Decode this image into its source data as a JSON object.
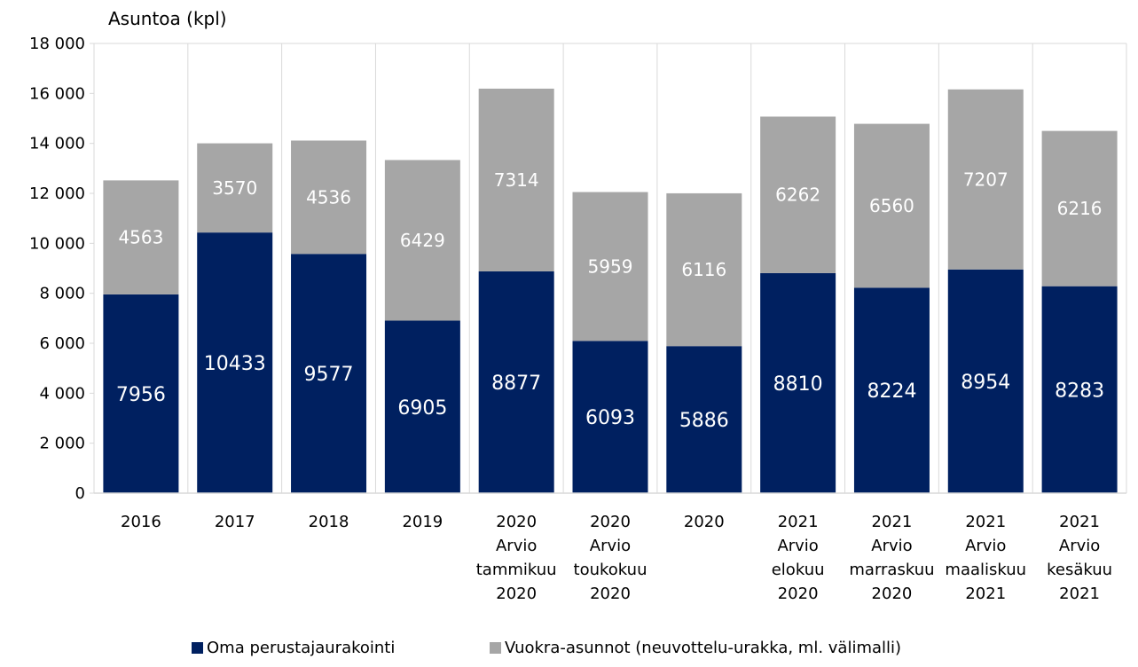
{
  "chart_data": {
    "type": "bar",
    "stacked": true,
    "ylabel": "Asuntoa (kpl)",
    "ylim": [
      0,
      18000
    ],
    "yticks": [
      0,
      2000,
      4000,
      6000,
      8000,
      10000,
      12000,
      14000,
      16000,
      18000
    ],
    "ytick_labels": [
      "0",
      "2 000",
      "4 000",
      "6 000",
      "8 000",
      "10 000",
      "12 000",
      "14 000",
      "16 000",
      "18 000"
    ],
    "grid": "vertical",
    "legend_position": "bottom",
    "categories": [
      [
        "2016"
      ],
      [
        "2017"
      ],
      [
        "2018"
      ],
      [
        "2019"
      ],
      [
        "2020",
        "Arvio",
        "tammikuu",
        "2020"
      ],
      [
        "2020",
        "Arvio",
        "toukokuu",
        "2020"
      ],
      [
        "2020"
      ],
      [
        "2021",
        "Arvio",
        "elokuu",
        "2020"
      ],
      [
        "2021",
        "Arvio",
        "marraskuu",
        "2020"
      ],
      [
        "2021",
        "Arvio",
        "maaliskuu",
        "2021"
      ],
      [
        "2021",
        "Arvio",
        "kesäkuu",
        "2021"
      ]
    ],
    "series": [
      {
        "name": "Oma perustajaurakointi",
        "color": "#002060",
        "values": [
          7956,
          10433,
          9577,
          6905,
          8877,
          6093,
          5886,
          8810,
          8224,
          8954,
          8283
        ]
      },
      {
        "name": "Vuokra-asunnot (neuvottelu-urakka, ml. välimalli)",
        "color": "#a6a6a6",
        "values": [
          4563,
          3570,
          4536,
          6429,
          7314,
          5959,
          6116,
          6262,
          6560,
          7207,
          6216
        ]
      }
    ]
  }
}
